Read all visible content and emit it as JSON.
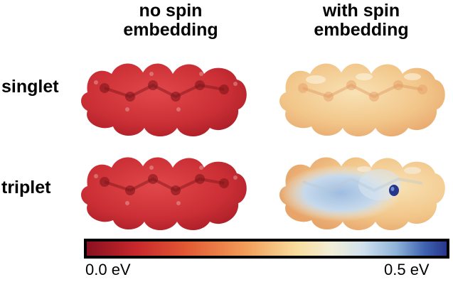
{
  "columns": [
    {
      "line1": "no spin",
      "line2": "embedding"
    },
    {
      "line1": "with spin",
      "line2": "embedding"
    }
  ],
  "rows": [
    "singlet",
    "triplet"
  ],
  "colorbar": {
    "min_label": "0.0 eV",
    "max_label": "0.5 eV",
    "colors": [
      "#8a1020",
      "#c8282c",
      "#e25a34",
      "#f29d58",
      "#f8dc9c",
      "#f2efd8",
      "#cfe0ee",
      "#8fb2d8",
      "#3e62b0",
      "#27368c"
    ]
  }
}
